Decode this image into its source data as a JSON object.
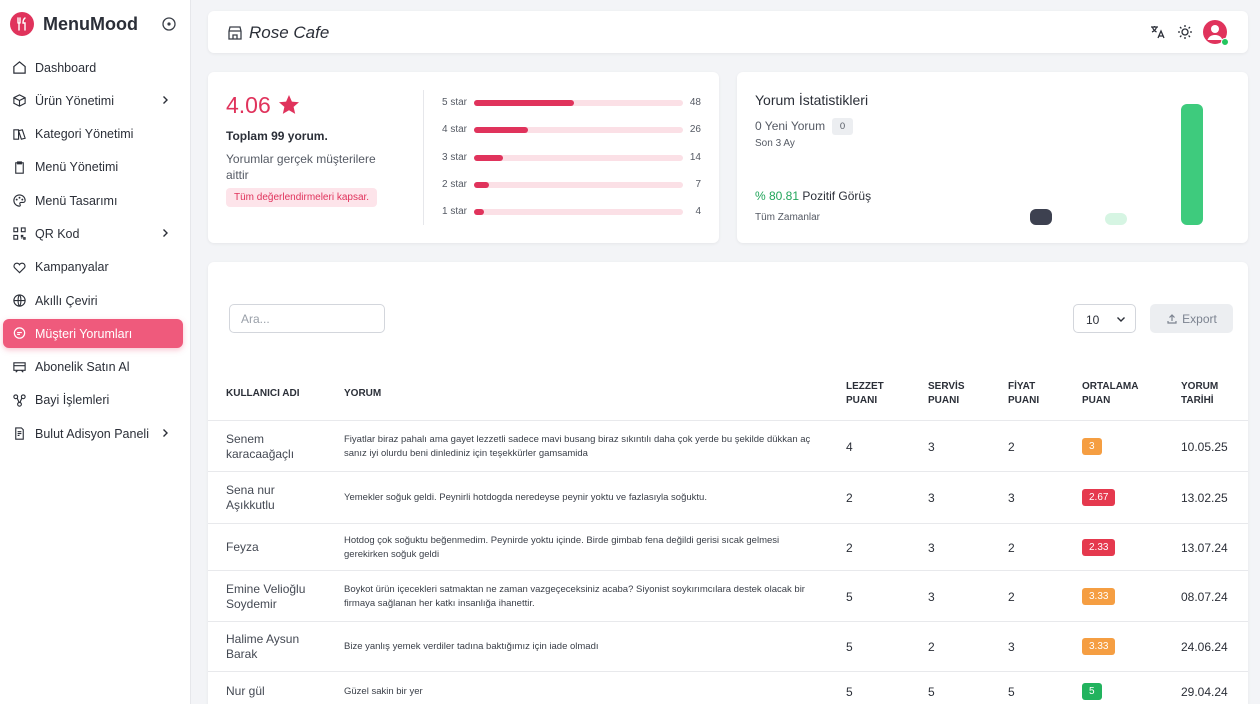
{
  "app": {
    "name": "MenuMood"
  },
  "sidebar": {
    "items": [
      {
        "label": "Dashboard",
        "icon": "home-icon",
        "has_submenu": false,
        "active": false
      },
      {
        "label": "Ürün Yönetimi",
        "icon": "box-icon",
        "has_submenu": true,
        "active": false
      },
      {
        "label": "Kategori Yönetimi",
        "icon": "category-icon",
        "has_submenu": false,
        "active": false
      },
      {
        "label": "Menü Yönetimi",
        "icon": "clipboard-icon",
        "has_submenu": false,
        "active": false
      },
      {
        "label": "Menü Tasarımı",
        "icon": "palette-icon",
        "has_submenu": false,
        "active": false
      },
      {
        "label": "QR Kod",
        "icon": "qr-code-icon",
        "has_submenu": true,
        "active": false
      },
      {
        "label": "Kampanyalar",
        "icon": "heart-icon",
        "has_submenu": false,
        "active": false
      },
      {
        "label": "Akıllı Çeviri",
        "icon": "globe-icon",
        "has_submenu": false,
        "active": false
      },
      {
        "label": "Müşteri Yorumları",
        "icon": "comment-icon",
        "has_submenu": false,
        "active": true
      },
      {
        "label": "Abonelik Satın Al",
        "icon": "subscription-icon",
        "has_submenu": false,
        "active": false
      },
      {
        "label": "Bayi İşlemleri",
        "icon": "network-icon",
        "has_submenu": false,
        "active": false
      },
      {
        "label": "Bulut Adisyon Paneli",
        "icon": "cloud-receipt-icon",
        "has_submenu": true,
        "active": false
      }
    ]
  },
  "header": {
    "title": "Rose Cafe"
  },
  "rating": {
    "average": "4.06",
    "total": "Toplam 99 yorum.",
    "description": "Yorumlar gerçek müşterilere aittir",
    "badge": "Tüm değerlendirmeleri kapsar.",
    "breakdown": [
      {
        "label": "5 star",
        "count": "48",
        "fraction": 0.48
      },
      {
        "label": "4 star",
        "count": "26",
        "fraction": 0.26
      },
      {
        "label": "3 star",
        "count": "14",
        "fraction": 0.14
      },
      {
        "label": "2 star",
        "count": "7",
        "fraction": 0.07
      },
      {
        "label": "1 star",
        "count": "4",
        "fraction": 0.04
      }
    ]
  },
  "stats": {
    "title": "Yorum İstatistikleri",
    "new_reviews": "0 Yeni Yorum",
    "new_count": "0",
    "period": "Son 3 Ay",
    "positive_pct": "% 80.81",
    "positive_label": "Pozitif Görüş",
    "all_time": "Tüm Zamanlar",
    "colors": {
      "green": "#3ecb7d",
      "dark": "#3d4150",
      "mint": "#d6f5e3"
    }
  },
  "table": {
    "search_placeholder": "Ara...",
    "page_size": "10",
    "export_label": "Export",
    "headers": {
      "user": "KULLANICI ADI",
      "comment": "YORUM",
      "taste": "LEZZET PUANI",
      "service": "SERVİS PUANI",
      "price": "FİYAT PUANI",
      "average": "ORTALAMA PUAN",
      "date": "YORUM TARİHİ"
    },
    "rows": [
      {
        "user": "Senem karacaağaçlı",
        "comment": "Fiyatlar biraz pahalı ama gayet lezzetli sadece mavi busang biraz sıkıntılı daha çok yerde bu şekilde dükkan aç sanız iyi olurdu beni dinlediniz için teşekkürler gamsamida",
        "taste": "4",
        "service": "3",
        "price": "2",
        "average": "3",
        "date": "10.05.25",
        "badge_color": "#f59e42"
      },
      {
        "user": "Sena nur Aşıkkutlu",
        "comment": "Yemekler soğuk geldi. Peynirli hotdogda neredeyse peynir yoktu ve fazlasıyla soğuktu.",
        "taste": "2",
        "service": "3",
        "price": "3",
        "average": "2.67",
        "date": "13.02.25",
        "badge_color": "#e5394e"
      },
      {
        "user": "Feyza",
        "comment": "Hotdog çok soğuktu beğenmedim. Peynirde yoktu içinde. Birde gimbab fena değildi gerisi sıcak gelmesi gerekirken soğuk geldi",
        "taste": "2",
        "service": "3",
        "price": "2",
        "average": "2.33",
        "date": "13.07.24",
        "badge_color": "#e5394e"
      },
      {
        "user": "Emine Velioğlu Soydemir",
        "comment": "Boykot ürün içecekleri satmaktan ne zaman vazgeçeceksiniz acaba? Siyonist soykırımcılara destek olacak bir firmaya sağlanan her katkı insanlığa ihanettir.",
        "taste": "5",
        "service": "3",
        "price": "2",
        "average": "3.33",
        "date": "08.07.24",
        "badge_color": "#f59e42"
      },
      {
        "user": "Halime Aysun Barak",
        "comment": "Bize yanlış yemek verdiler tadına baktığımız için iade olmadı",
        "taste": "5",
        "service": "2",
        "price": "3",
        "average": "3.33",
        "date": "24.06.24",
        "badge_color": "#f59e42"
      },
      {
        "user": "Nur gül",
        "comment": "Güzel sakin bir yer",
        "taste": "5",
        "service": "5",
        "price": "5",
        "average": "5",
        "date": "29.04.24",
        "badge_color": "#22b35e"
      }
    ]
  }
}
